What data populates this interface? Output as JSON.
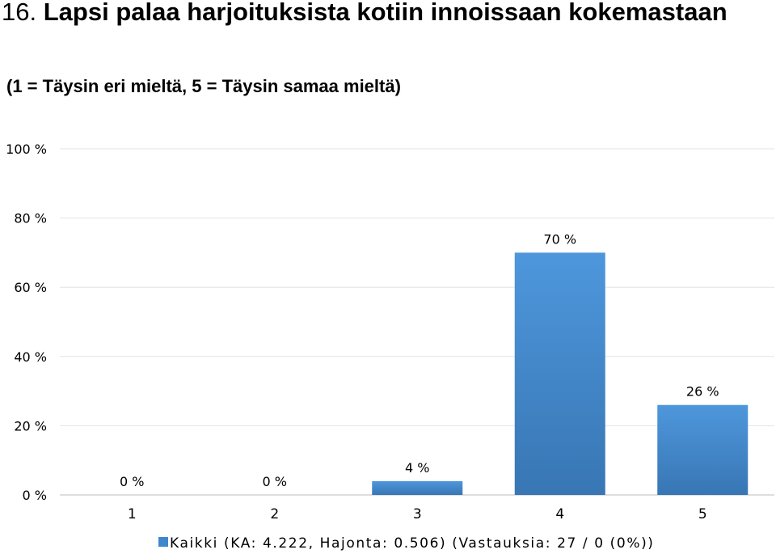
{
  "title": {
    "number": "16.",
    "text": "Lapsi palaa harjoituksista kotiin innoissaan kokemastaan"
  },
  "subtitle": "(1 = Täysin eri mieltä, 5 = Täysin samaa mieltä)",
  "chart_data": {
    "type": "bar",
    "categories": [
      "1",
      "2",
      "3",
      "4",
      "5"
    ],
    "series": [
      {
        "name": "Kaikki (KA: 4.222, Hajonta: 0.506) (Vastauksia: 27 / 0 (0%))",
        "values": [
          0,
          0,
          4,
          70,
          26
        ],
        "labels": [
          "0 %",
          "0 %",
          "4 %",
          "70 %",
          "26 %"
        ]
      }
    ],
    "yticks": [
      {
        "value": 0,
        "label": "0 %"
      },
      {
        "value": 20,
        "label": "20 %"
      },
      {
        "value": 40,
        "label": "40 %"
      },
      {
        "value": 60,
        "label": "60 %"
      },
      {
        "value": 80,
        "label": "80 %"
      },
      {
        "value": 100,
        "label": "100 %"
      }
    ],
    "ylim": [
      0,
      100
    ],
    "grid": true,
    "legend_position": "bottom",
    "colors": {
      "bar_top": "#4e97dc",
      "bar_bottom": "#3876b4",
      "grid": "#e3e3e3",
      "axis": "#bdbdbd"
    }
  }
}
